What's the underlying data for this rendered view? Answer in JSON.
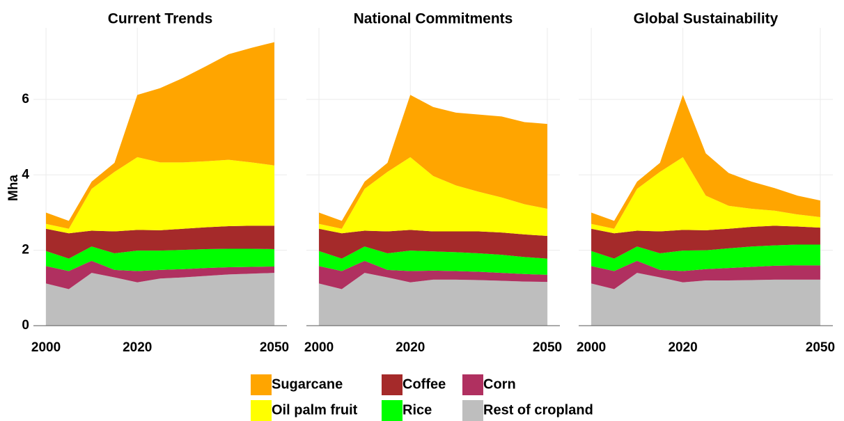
{
  "chart_data": [
    {
      "type": "area",
      "title": "Current Trends",
      "ylabel": "Mha",
      "x": [
        2000,
        2005,
        2010,
        2015,
        2020,
        2025,
        2030,
        2035,
        2040,
        2045,
        2050
      ],
      "xlim": [
        1997.25,
        2052.75
      ],
      "xticks": [
        2000,
        2020,
        2050
      ],
      "ylim": [
        0,
        7.9
      ],
      "yticks": [
        0,
        2,
        4,
        6
      ],
      "grid": true,
      "series": [
        {
          "name": "Rest of cropland",
          "color": "#bebebe",
          "values": [
            1.12,
            0.97,
            1.4,
            1.28,
            1.15,
            1.25,
            1.28,
            1.32,
            1.36,
            1.38,
            1.4
          ]
        },
        {
          "name": "Corn",
          "color": "#b03060",
          "values": [
            0.46,
            0.48,
            0.32,
            0.2,
            0.3,
            0.23,
            0.22,
            0.21,
            0.19,
            0.18,
            0.17
          ]
        },
        {
          "name": "Rice",
          "color": "#00ff00",
          "values": [
            0.4,
            0.33,
            0.38,
            0.44,
            0.54,
            0.51,
            0.51,
            0.5,
            0.49,
            0.48,
            0.46
          ]
        },
        {
          "name": "Coffee",
          "color": "#a52a2a",
          "values": [
            0.59,
            0.67,
            0.42,
            0.58,
            0.55,
            0.54,
            0.56,
            0.58,
            0.6,
            0.61,
            0.62
          ]
        },
        {
          "name": "Oil palm fruit",
          "color": "#ffff00",
          "values": [
            0.13,
            0.12,
            1.11,
            1.58,
            1.93,
            1.8,
            1.76,
            1.75,
            1.76,
            1.68,
            1.6
          ]
        },
        {
          "name": "Sugarcane",
          "color": "#ffa500",
          "values": [
            0.3,
            0.21,
            0.19,
            0.24,
            1.65,
            1.97,
            2.24,
            2.52,
            2.8,
            3.04,
            3.27
          ]
        }
      ]
    },
    {
      "type": "area",
      "title": "National Commitments",
      "x": [
        2000,
        2005,
        2010,
        2015,
        2020,
        2025,
        2030,
        2035,
        2040,
        2045,
        2050
      ],
      "xlim": [
        1997.25,
        2052.75
      ],
      "xticks": [
        2000,
        2020,
        2050
      ],
      "ylim": [
        0,
        7.9
      ],
      "grid": true,
      "series": [
        {
          "name": "Rest of cropland",
          "color": "#bebebe",
          "values": [
            1.12,
            0.97,
            1.4,
            1.28,
            1.15,
            1.22,
            1.22,
            1.21,
            1.19,
            1.17,
            1.16
          ]
        },
        {
          "name": "Corn",
          "color": "#b03060",
          "values": [
            0.46,
            0.48,
            0.32,
            0.2,
            0.3,
            0.24,
            0.23,
            0.22,
            0.21,
            0.2,
            0.19
          ]
        },
        {
          "name": "Rice",
          "color": "#00ff00",
          "values": [
            0.4,
            0.33,
            0.38,
            0.44,
            0.54,
            0.51,
            0.5,
            0.49,
            0.48,
            0.45,
            0.43
          ]
        },
        {
          "name": "Coffee",
          "color": "#a52a2a",
          "values": [
            0.59,
            0.67,
            0.42,
            0.58,
            0.55,
            0.53,
            0.55,
            0.58,
            0.59,
            0.6,
            0.6
          ]
        },
        {
          "name": "Oil palm fruit",
          "color": "#ffff00",
          "values": [
            0.13,
            0.12,
            1.11,
            1.58,
            1.93,
            1.47,
            1.22,
            1.05,
            0.93,
            0.8,
            0.72
          ]
        },
        {
          "name": "Sugarcane",
          "color": "#ffa500",
          "values": [
            0.3,
            0.21,
            0.19,
            0.24,
            1.65,
            1.83,
            1.93,
            2.05,
            2.15,
            2.18,
            2.25
          ]
        }
      ]
    },
    {
      "type": "area",
      "title": "Global Sustainability",
      "x": [
        2000,
        2005,
        2010,
        2015,
        2020,
        2025,
        2030,
        2035,
        2040,
        2045,
        2050
      ],
      "xlim": [
        1997.25,
        2052.75
      ],
      "xticks": [
        2000,
        2020,
        2050
      ],
      "ylim": [
        0,
        7.9
      ],
      "grid": true,
      "series": [
        {
          "name": "Rest of cropland",
          "color": "#bebebe",
          "values": [
            1.12,
            0.97,
            1.4,
            1.28,
            1.15,
            1.2,
            1.2,
            1.21,
            1.22,
            1.22,
            1.22
          ]
        },
        {
          "name": "Corn",
          "color": "#b03060",
          "values": [
            0.46,
            0.48,
            0.32,
            0.2,
            0.3,
            0.3,
            0.33,
            0.35,
            0.37,
            0.38,
            0.38
          ]
        },
        {
          "name": "Rice",
          "color": "#00ff00",
          "values": [
            0.4,
            0.33,
            0.38,
            0.44,
            0.54,
            0.5,
            0.52,
            0.54,
            0.54,
            0.55,
            0.55
          ]
        },
        {
          "name": "Coffee",
          "color": "#a52a2a",
          "values": [
            0.59,
            0.67,
            0.42,
            0.58,
            0.55,
            0.53,
            0.52,
            0.52,
            0.52,
            0.48,
            0.45
          ]
        },
        {
          "name": "Oil palm fruit",
          "color": "#ffff00",
          "values": [
            0.13,
            0.12,
            1.11,
            1.58,
            1.93,
            0.92,
            0.61,
            0.48,
            0.4,
            0.32,
            0.28
          ]
        },
        {
          "name": "Sugarcane",
          "color": "#ffa500",
          "values": [
            0.3,
            0.21,
            0.19,
            0.24,
            1.65,
            1.12,
            0.87,
            0.72,
            0.6,
            0.5,
            0.44
          ]
        }
      ]
    }
  ]
}
